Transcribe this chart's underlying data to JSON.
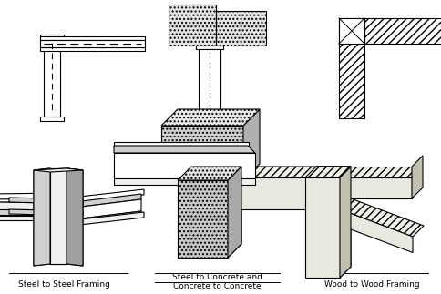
{
  "bg_color": "#ffffff",
  "line_color": "#000000",
  "labels": [
    "Steel to Steel Framing",
    "Steel to Concrete and\nConcrete to Concrete",
    "Wood to Wood Framing"
  ],
  "figsize": [
    4.85,
    3.23
  ],
  "dpi": 100,
  "gray_light": "#f0f0f0",
  "gray_mid": "#d0d0d0",
  "gray_dark": "#a0a0a0",
  "gray_darker": "#808080",
  "concrete_fc": "#e4e4e4",
  "wood_fc": "#e8e8e0",
  "wood_dark": "#c0bfb0",
  "steel_fc": "#d8d8d8",
  "steel_dark": "#b0b0b0"
}
